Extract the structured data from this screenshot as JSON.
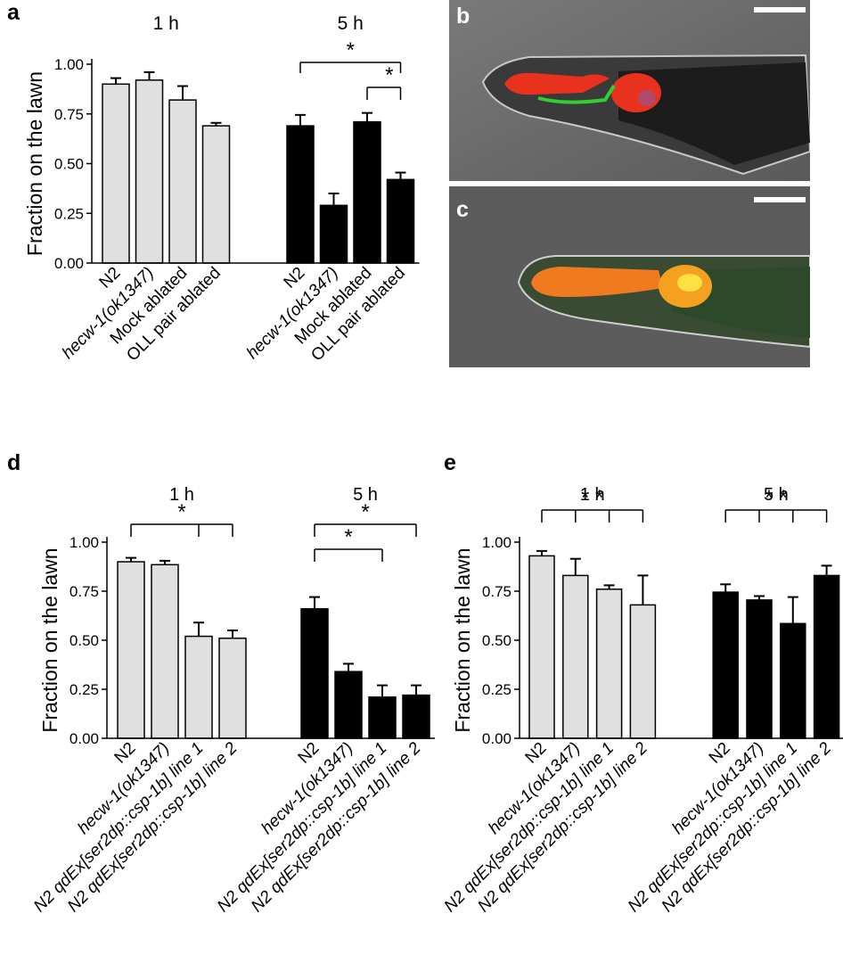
{
  "figure": {
    "panel_letters": {
      "a": "a",
      "b": "b",
      "c": "c",
      "d": "d",
      "e": "e"
    }
  },
  "chart_data": [
    {
      "panel": "a",
      "type": "bar",
      "ylabel": "Fraction on the lawn",
      "ylim": [
        0,
        1.0
      ],
      "yticks": [
        "0.00",
        "0.25",
        "0.50",
        "0.75",
        "1.00"
      ],
      "groups": [
        {
          "name": "1 h",
          "bar_color": "#e0e0e0",
          "categories": [
            "N2",
            "hecw-1(ok1347)",
            "Mock ablated",
            "OLL pair ablated"
          ],
          "italic": [
            false,
            true,
            false,
            false
          ],
          "values": [
            0.9,
            0.92,
            0.82,
            0.69
          ],
          "errors": [
            0.03,
            0.04,
            0.07,
            0.015
          ]
        },
        {
          "name": "5 h",
          "bar_color": "#000000",
          "categories": [
            "N2",
            "hecw-1(ok1347)",
            "Mock ablated",
            "OLL pair ablated"
          ],
          "italic": [
            false,
            true,
            false,
            false
          ],
          "values": [
            0.69,
            0.29,
            0.71,
            0.42
          ],
          "errors": [
            0.055,
            0.06,
            0.045,
            0.035
          ]
        }
      ],
      "significance": [
        {
          "group": 1,
          "from": 0,
          "to": [
            3
          ],
          "label": "*"
        },
        {
          "group": 1,
          "from": 2,
          "to": [
            3
          ],
          "label": "*"
        }
      ]
    },
    {
      "panel": "d",
      "type": "bar",
      "ylabel": "Fraction on the lawn",
      "ylim": [
        0,
        1.0
      ],
      "yticks": [
        "0.00",
        "0.25",
        "0.50",
        "0.75",
        "1.00"
      ],
      "groups": [
        {
          "name": "1 h",
          "bar_color": "#e0e0e0",
          "categories": [
            "N2",
            "hecw-1(ok1347)",
            "N2 qdEx[ser2dp::csp-1b] line 1",
            "N2 qdEx[ser2dp::csp-1b] line 2"
          ],
          "italic": [
            false,
            true,
            true,
            true
          ],
          "values": [
            0.9,
            0.885,
            0.52,
            0.51
          ],
          "errors": [
            0.02,
            0.02,
            0.07,
            0.04
          ]
        },
        {
          "name": "5 h",
          "bar_color": "#000000",
          "categories": [
            "N2",
            "hecw-1(ok1347)",
            "N2 qdEx[ser2dp::csp-1b] line 1",
            "N2 qdEx[ser2dp::csp-1b] line 2"
          ],
          "italic": [
            false,
            true,
            true,
            true
          ],
          "values": [
            0.66,
            0.34,
            0.21,
            0.22
          ],
          "errors": [
            0.06,
            0.04,
            0.06,
            0.05
          ]
        }
      ],
      "significance": [
        {
          "group": 0,
          "from": 0,
          "to": [
            2,
            3
          ],
          "label": "*"
        },
        {
          "group": 1,
          "from": 0,
          "to": [
            2
          ],
          "label": "*"
        },
        {
          "group": 1,
          "from": 0,
          "to": [
            3
          ],
          "label": "*"
        }
      ]
    },
    {
      "panel": "e",
      "type": "bar",
      "ylabel": "Fraction on the lawn",
      "ylim": [
        0,
        1.0
      ],
      "yticks": [
        "0.00",
        "0.25",
        "0.50",
        "0.75",
        "1.00"
      ],
      "groups": [
        {
          "name": "1 h",
          "bar_color": "#e0e0e0",
          "categories": [
            "N2",
            "hecw-1(ok1347)",
            "N2 qdEx[ser2dp::csp-1b] line 1",
            "N2 qdEx[ser2dp::csp-1b] line 2"
          ],
          "italic": [
            false,
            true,
            true,
            true
          ],
          "values": [
            0.93,
            0.83,
            0.76,
            0.68
          ],
          "errors": [
            0.025,
            0.085,
            0.02,
            0.15
          ]
        },
        {
          "name": "5 h",
          "bar_color": "#000000",
          "categories": [
            "N2",
            "hecw-1(ok1347)",
            "N2 qdEx[ser2dp::csp-1b] line 1",
            "N2 qdEx[ser2dp::csp-1b] line 2"
          ],
          "italic": [
            false,
            true,
            true,
            true
          ],
          "values": [
            0.745,
            0.705,
            0.585,
            0.83
          ],
          "errors": [
            0.04,
            0.02,
            0.135,
            0.05
          ]
        }
      ],
      "significance": [
        {
          "group": 0,
          "from": 0,
          "to": [
            1,
            2,
            3
          ],
          "label": "* *"
        },
        {
          "group": 1,
          "from": 0,
          "to": [
            1,
            2,
            3
          ],
          "label": "* *"
        }
      ]
    }
  ]
}
